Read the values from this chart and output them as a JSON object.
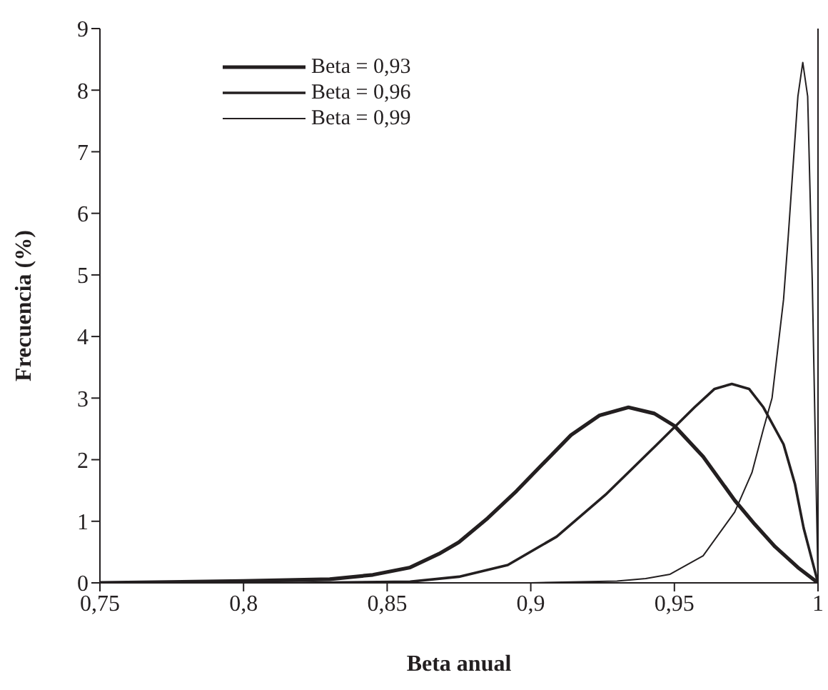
{
  "chart_data": {
    "type": "line",
    "xlabel": "Beta anual",
    "ylabel": "Frecuencia (%)",
    "xlim": [
      0.75,
      1
    ],
    "xticks": [
      {
        "value": 0.75,
        "label": "0,75"
      },
      {
        "value": 0.8,
        "label": "0,8"
      },
      {
        "value": 0.85,
        "label": "0,85"
      },
      {
        "value": 0.9,
        "label": "0,9"
      },
      {
        "value": 0.95,
        "label": "0,95"
      },
      {
        "value": 1,
        "label": "1"
      }
    ],
    "ylim": [
      0,
      9
    ],
    "yticks": [
      0,
      1,
      2,
      3,
      4,
      5,
      6,
      7,
      8,
      9
    ],
    "legend": "top left",
    "marker": "none",
    "line_style": "solid",
    "grid": false,
    "series": [
      {
        "name": "Beta = 0,93",
        "color": "#231f20",
        "x": [
          0.75,
          0.8,
          0.83,
          0.845,
          0.858,
          0.868,
          0.875,
          0.885,
          0.895,
          0.905,
          0.914,
          0.924,
          0.934,
          0.943,
          0.95,
          0.96,
          0.971,
          0.978,
          0.985,
          0.993,
          1.0
        ],
        "values": [
          0,
          0.03,
          0.06,
          0.13,
          0.25,
          0.47,
          0.66,
          1.05,
          1.49,
          1.97,
          2.4,
          2.72,
          2.85,
          2.75,
          2.55,
          2.05,
          1.34,
          0.95,
          0.59,
          0.25,
          0
        ]
      },
      {
        "name": "Beta = 0,96",
        "color": "#231f20",
        "x": [
          0.75,
          0.82,
          0.858,
          0.875,
          0.892,
          0.909,
          0.926,
          0.944,
          0.957,
          0.964,
          0.97,
          0.976,
          0.981,
          0.988,
          0.992,
          0.995,
          1.0
        ],
        "values": [
          0,
          0,
          0.02,
          0.1,
          0.29,
          0.75,
          1.43,
          2.25,
          2.85,
          3.15,
          3.23,
          3.15,
          2.85,
          2.25,
          1.6,
          0.89,
          0
        ]
      },
      {
        "name": "Beta = 0,99",
        "color": "#231f20",
        "x": [
          0.75,
          0.9,
          0.93,
          0.94,
          0.9485,
          0.96,
          0.971,
          0.977,
          0.981,
          0.984,
          0.988,
          0.9896,
          0.993,
          0.9947,
          0.9964,
          0.998,
          1.0
        ],
        "values": [
          0,
          0,
          0.03,
          0.07,
          0.14,
          0.44,
          1.15,
          1.79,
          2.5,
          3.0,
          4.6,
          5.6,
          7.9,
          8.45,
          7.9,
          4.9,
          0
        ]
      }
    ]
  }
}
